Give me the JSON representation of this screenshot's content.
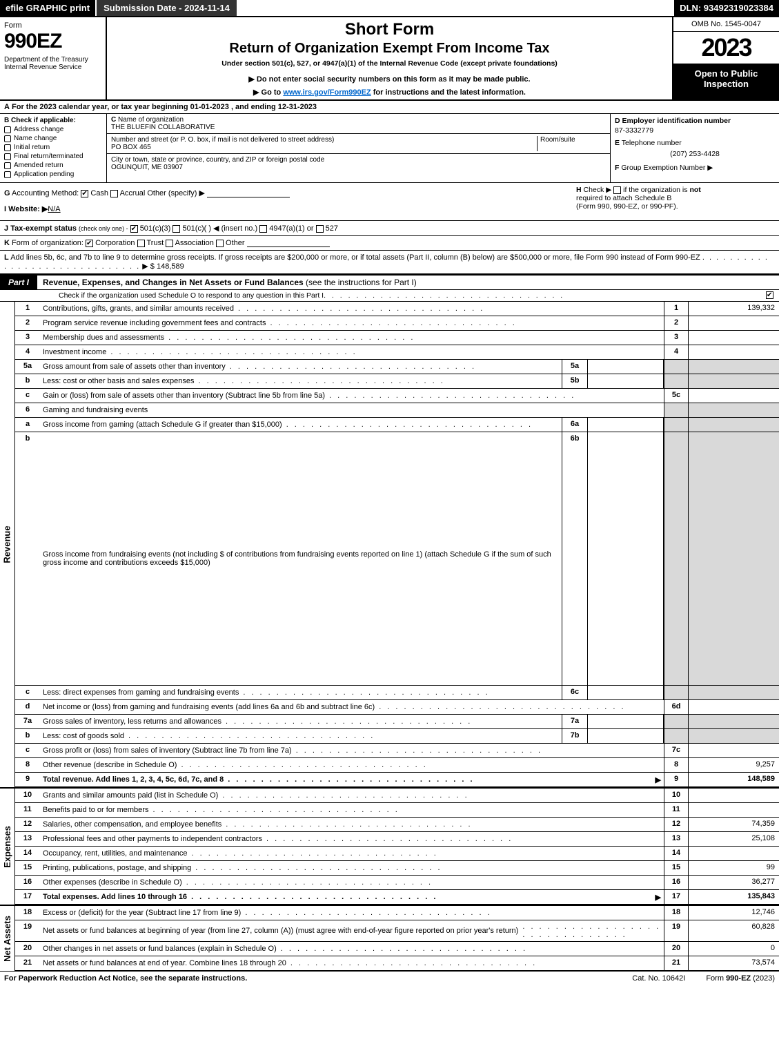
{
  "topbar": {
    "efile": "efile GRAPHIC print",
    "sub": "Submission Date - 2024-11-14",
    "dln": "DLN: 93492319023384"
  },
  "header": {
    "form": "Form",
    "formno": "990EZ",
    "dept": "Department of the Treasury\nInternal Revenue Service",
    "short": "Short Form",
    "return": "Return of Organization Exempt From Income Tax",
    "under": "Under section 501(c), 527, or 4947(a)(1) of the Internal Revenue Code (except private foundations)",
    "note": "▶ Do not enter social security numbers on this form as it may be made public.",
    "go_pre": "▶ Go to ",
    "go_link": "www.irs.gov/Form990EZ",
    "go_post": " for instructions and the latest information.",
    "omb": "OMB No. 1545-0047",
    "year": "2023",
    "open": "Open to Public Inspection"
  },
  "lineA": {
    "label": "A",
    "text": "For the 2023 calendar year, or tax year beginning 01-01-2023 , and ending 12-31-2023"
  },
  "colB": {
    "label": "B",
    "heading": "Check if applicable:",
    "items": [
      "Address change",
      "Name change",
      "Initial return",
      "Final return/terminated",
      "Amended return",
      "Application pending"
    ]
  },
  "colC": {
    "c_label": "C",
    "name_lbl": "Name of organization",
    "name": "THE BLUEFIN COLLABORATIVE",
    "street_lbl": "Number and street (or P. O. box, if mail is not delivered to street address)",
    "room_lbl": "Room/suite",
    "street": "PO BOX 465",
    "city_lbl": "City or town, state or province, country, and ZIP or foreign postal code",
    "city": "OGUNQUIT, ME  03907"
  },
  "colD": {
    "d_label": "D",
    "ein_lbl": "Employer identification number",
    "ein": "87-3332779",
    "e_label": "E",
    "tel_lbl": "Telephone number",
    "tel": "(207) 253-4428",
    "f_label": "F",
    "grp_lbl": "Group Exemption Number  ▶"
  },
  "rowG": {
    "g_label": "G",
    "text": "Accounting Method:",
    "cash": "Cash",
    "accrual": "Accrual",
    "other": "Other (specify) ▶"
  },
  "rowH": {
    "h_label": "H",
    "text1": "Check ▶",
    "text2": "if the organization is ",
    "not": "not",
    "text3": "required to attach Schedule B",
    "text4": "(Form 990, 990-EZ, or 990-PF)."
  },
  "rowI": {
    "label": "I",
    "text": "Website: ▶",
    "val": "N/A"
  },
  "rowJ": {
    "label": "J",
    "text": "Tax-exempt status",
    "sub": "(check only one) -",
    "o1": "501(c)(3)",
    "o2": "501(c)(  ) ◀ (insert no.)",
    "o3": "4947(a)(1) or",
    "o4": "527"
  },
  "rowK": {
    "label": "K",
    "text": "Form of organization:",
    "o1": "Corporation",
    "o2": "Trust",
    "o3": "Association",
    "o4": "Other"
  },
  "rowL": {
    "label": "L",
    "text": "Add lines 5b, 6c, and 7b to line 9 to determine gross receipts. If gross receipts are $200,000 or more, or if total assets (Part II, column (B) below) are $500,000 or more, file Form 990 instead of Form 990-EZ",
    "arrow": "▶ $",
    "val": "148,589"
  },
  "part1": {
    "tag": "Part I",
    "title": "Revenue, Expenses, and Changes in Net Assets or Fund Balances",
    "title_sub": "(see the instructions for Part I)",
    "sub": "Check if the organization used Schedule O to respond to any question in this Part I"
  },
  "sides": {
    "rev": "Revenue",
    "exp": "Expenses",
    "net": "Net Assets"
  },
  "dots": ". . . . . . . . . . . . . . . . . . . . . . . . . . . . . .",
  "lines": {
    "1": {
      "n": "1",
      "d": "Contributions, gifts, grants, and similar amounts received",
      "r": "1",
      "v": "139,332"
    },
    "2": {
      "n": "2",
      "d": "Program service revenue including government fees and contracts",
      "r": "2",
      "v": ""
    },
    "3": {
      "n": "3",
      "d": "Membership dues and assessments",
      "r": "3",
      "v": ""
    },
    "4": {
      "n": "4",
      "d": "Investment income",
      "r": "4",
      "v": ""
    },
    "5a": {
      "n": "5a",
      "d": "Gross amount from sale of assets other than inventory",
      "s": "5a"
    },
    "5b": {
      "n": "b",
      "d": "Less: cost or other basis and sales expenses",
      "s": "5b"
    },
    "5c": {
      "n": "c",
      "d": "Gain or (loss) from sale of assets other than inventory (Subtract line 5b from line 5a)",
      "r": "5c",
      "v": ""
    },
    "6": {
      "n": "6",
      "d": "Gaming and fundraising events"
    },
    "6a": {
      "n": "a",
      "d": "Gross income from gaming (attach Schedule G if greater than $15,000)",
      "s": "6a"
    },
    "6b": {
      "n": "b",
      "d": "Gross income from fundraising events (not including $                  of contributions from fundraising events reported on line 1) (attach Schedule G if the sum of such gross income and contributions exceeds $15,000)",
      "s": "6b"
    },
    "6c": {
      "n": "c",
      "d": "Less: direct expenses from gaming and fundraising events",
      "s": "6c"
    },
    "6d": {
      "n": "d",
      "d": "Net income or (loss) from gaming and fundraising events (add lines 6a and 6b and subtract line 6c)",
      "r": "6d",
      "v": ""
    },
    "7a": {
      "n": "7a",
      "d": "Gross sales of inventory, less returns and allowances",
      "s": "7a"
    },
    "7b": {
      "n": "b",
      "d": "Less: cost of goods sold",
      "s": "7b"
    },
    "7c": {
      "n": "c",
      "d": "Gross profit or (loss) from sales of inventory (Subtract line 7b from line 7a)",
      "r": "7c",
      "v": ""
    },
    "8": {
      "n": "8",
      "d": "Other revenue (describe in Schedule O)",
      "r": "8",
      "v": "9,257"
    },
    "9": {
      "n": "9",
      "d": "Total revenue. Add lines 1, 2, 3, 4, 5c, 6d, 7c, and 8",
      "r": "9",
      "v": "148,589",
      "bold": true,
      "arrow": true
    },
    "10": {
      "n": "10",
      "d": "Grants and similar amounts paid (list in Schedule O)",
      "r": "10",
      "v": ""
    },
    "11": {
      "n": "11",
      "d": "Benefits paid to or for members",
      "r": "11",
      "v": ""
    },
    "12": {
      "n": "12",
      "d": "Salaries, other compensation, and employee benefits",
      "r": "12",
      "v": "74,359"
    },
    "13": {
      "n": "13",
      "d": "Professional fees and other payments to independent contractors",
      "r": "13",
      "v": "25,108"
    },
    "14": {
      "n": "14",
      "d": "Occupancy, rent, utilities, and maintenance",
      "r": "14",
      "v": ""
    },
    "15": {
      "n": "15",
      "d": "Printing, publications, postage, and shipping",
      "r": "15",
      "v": "99"
    },
    "16": {
      "n": "16",
      "d": "Other expenses (describe in Schedule O)",
      "r": "16",
      "v": "36,277"
    },
    "17": {
      "n": "17",
      "d": "Total expenses. Add lines 10 through 16",
      "r": "17",
      "v": "135,843",
      "bold": true,
      "arrow": true
    },
    "18": {
      "n": "18",
      "d": "Excess or (deficit) for the year (Subtract line 17 from line 9)",
      "r": "18",
      "v": "12,746"
    },
    "19": {
      "n": "19",
      "d": "Net assets or fund balances at beginning of year (from line 27, column (A)) (must agree with end-of-year figure reported on prior year's return)",
      "r": "19",
      "v": "60,828"
    },
    "20": {
      "n": "20",
      "d": "Other changes in net assets or fund balances (explain in Schedule O)",
      "r": "20",
      "v": "0"
    },
    "21": {
      "n": "21",
      "d": "Net assets or fund balances at end of year. Combine lines 18 through 20",
      "r": "21",
      "v": "73,574"
    }
  },
  "footer": {
    "left": "For Paperwork Reduction Act Notice, see the separate instructions.",
    "mid": "Cat. No. 10642I",
    "right_pre": "Form ",
    "right_b": "990-EZ",
    "right_post": " (2023)"
  }
}
